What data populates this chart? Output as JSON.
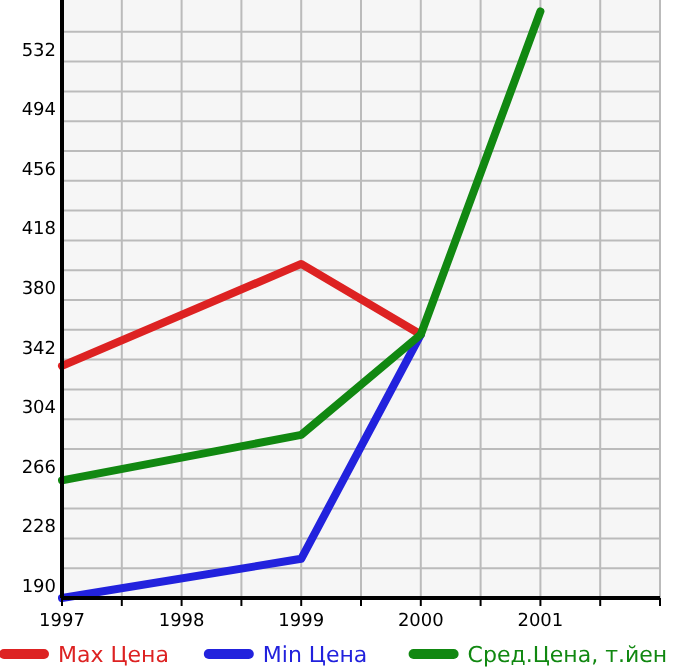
{
  "chart_data": {
    "type": "line",
    "x": [
      1997,
      1999,
      2000,
      2001
    ],
    "series": [
      {
        "name": "Max Цена",
        "color": "#dd2222",
        "values": [
          338,
          403,
          358,
          null
        ]
      },
      {
        "name": "Min Цена",
        "color": "#2222dd",
        "values": [
          190,
          215,
          358,
          null
        ]
      },
      {
        "name": "Сред.Цена, т.йен",
        "color": "#118811",
        "values": [
          265,
          294,
          358,
          564
        ]
      }
    ],
    "xlim": [
      1997,
      2002
    ],
    "xticks": [
      1997,
      {
        "value": 1997.5,
        "label": null
      },
      1998,
      {
        "value": 1998.5,
        "label": null
      },
      1999,
      {
        "value": 1999.5,
        "label": null
      },
      2000,
      {
        "value": 2000.5,
        "label": null
      },
      2001,
      {
        "value": 2001.5,
        "label": null
      },
      {
        "value": 2002,
        "label": null
      }
    ],
    "ylim": [
      190,
      570
    ],
    "yticks": [
      190,
      {
        "value": 209,
        "label": null
      },
      228,
      {
        "value": 247,
        "label": null
      },
      266,
      {
        "value": 285,
        "label": null
      },
      304,
      {
        "value": 323,
        "label": null
      },
      342,
      {
        "value": 361,
        "label": null
      },
      380,
      {
        "value": 399,
        "label": null
      },
      418,
      {
        "value": 437,
        "label": null
      },
      456,
      {
        "value": 475,
        "label": null
      },
      494,
      {
        "value": 513,
        "label": null
      },
      532,
      {
        "value": 551,
        "label": null
      }
    ],
    "grid": true,
    "legend": "bottom",
    "marker": "none",
    "line_style": "solid"
  }
}
